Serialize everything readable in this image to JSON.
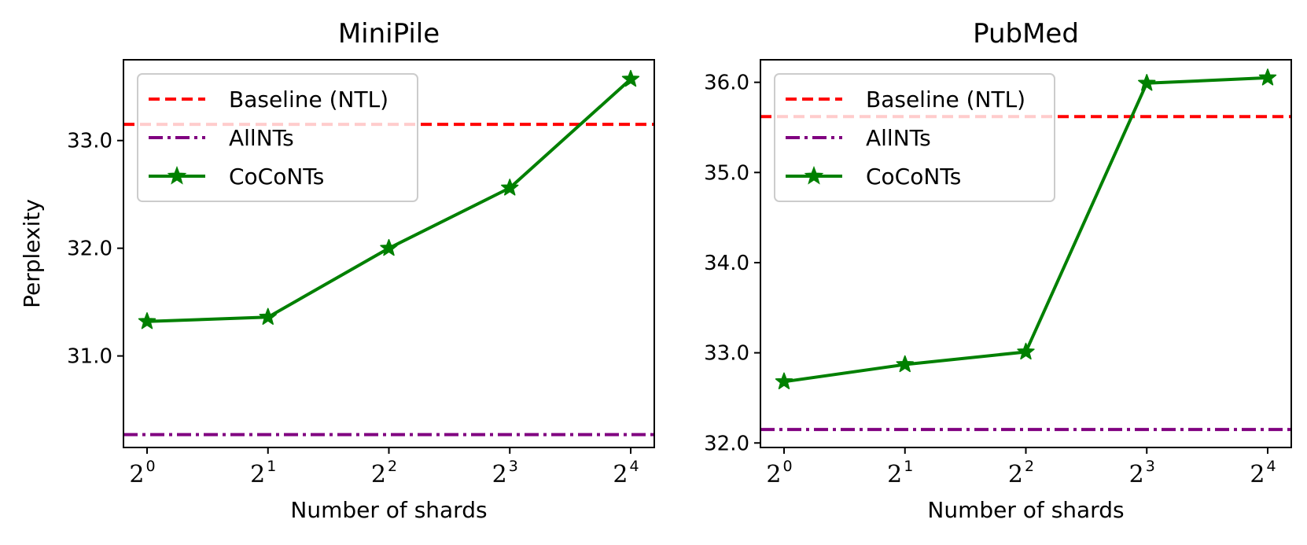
{
  "chart_data": [
    {
      "type": "line",
      "title": "MiniPile",
      "xlabel": "Number of shards",
      "ylabel": "Perplexity",
      "x": [
        1,
        2,
        4,
        8,
        16
      ],
      "x_tick_base": "2",
      "x_tick_exponents": [
        "0",
        "1",
        "2",
        "3",
        "4"
      ],
      "xscale": "log2",
      "ylim": [
        30.15,
        33.75
      ],
      "yticks": [
        31.0,
        32.0,
        33.0
      ],
      "ytick_labels": [
        "31.0",
        "32.0",
        "33.0"
      ],
      "series": [
        {
          "name": "Baseline (NTL)",
          "kind": "hline",
          "value": 33.15,
          "color": "#ff0000",
          "style": "dashed"
        },
        {
          "name": "AllNTs",
          "kind": "hline",
          "value": 30.27,
          "color": "#800080",
          "style": "dashdot"
        },
        {
          "name": "CoCoNTs",
          "kind": "line",
          "values": [
            31.32,
            31.36,
            32.0,
            32.56,
            33.57
          ],
          "color": "#008000",
          "marker": "star"
        }
      ],
      "legend": {
        "position": "upper-left",
        "entries": [
          "Baseline (NTL)",
          "AllNTs",
          "CoCoNTs"
        ]
      },
      "grid": false
    },
    {
      "type": "line",
      "title": "PubMed",
      "xlabel": "Number of shards",
      "ylabel": "",
      "x": [
        1,
        2,
        4,
        8,
        16
      ],
      "x_tick_base": "2",
      "x_tick_exponents": [
        "0",
        "1",
        "2",
        "3",
        "4"
      ],
      "xscale": "log2",
      "ylim": [
        31.95,
        36.25
      ],
      "yticks": [
        32.0,
        33.0,
        34.0,
        35.0,
        36.0
      ],
      "ytick_labels": [
        "32.0",
        "33.0",
        "34.0",
        "35.0",
        "36.0"
      ],
      "series": [
        {
          "name": "Baseline (NTL)",
          "kind": "hline",
          "value": 35.62,
          "color": "#ff0000",
          "style": "dashed"
        },
        {
          "name": "AllNTs",
          "kind": "hline",
          "value": 32.15,
          "color": "#800080",
          "style": "dashdot"
        },
        {
          "name": "CoCoNTs",
          "kind": "line",
          "values": [
            32.68,
            32.87,
            33.01,
            35.99,
            36.05
          ],
          "color": "#008000",
          "marker": "star"
        }
      ],
      "legend": {
        "position": "upper-left",
        "entries": [
          "Baseline (NTL)",
          "AllNTs",
          "CoCoNTs"
        ]
      },
      "grid": false
    }
  ]
}
